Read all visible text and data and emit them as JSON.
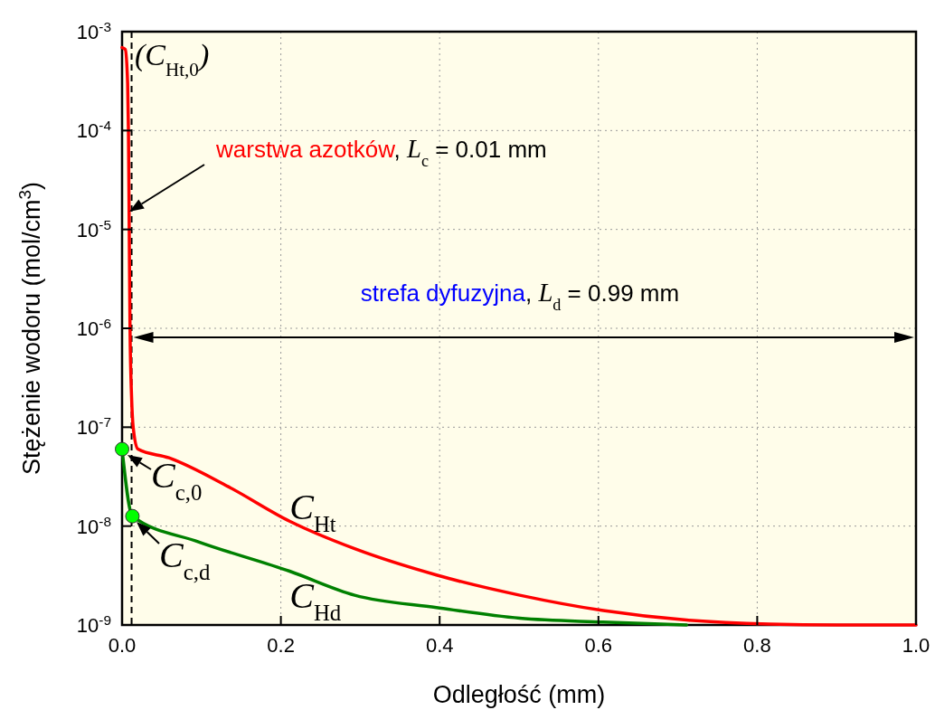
{
  "chart_data": {
    "type": "line",
    "xlabel": "Odległość  (mm)",
    "ylabel": "Stężenie wodoru  (mol/cm$^{3}$)",
    "log": "y",
    "xlim": [
      0,
      1
    ],
    "xticks": [
      {
        "value": 0,
        "label": "0.0"
      },
      {
        "value": 0.2,
        "label": "0.2"
      },
      {
        "value": 0.4,
        "label": "0.4"
      },
      {
        "value": 0.6,
        "label": "0.6"
      },
      {
        "value": 0.8,
        "label": "0.8"
      },
      {
        "value": 1,
        "label": "1.0"
      }
    ],
    "ylim": [
      1e-09,
      0.001
    ],
    "yticks": [
      {
        "value": 1e-09,
        "label": "10$^{-9}$"
      },
      {
        "value": 1e-08,
        "label": "10$^{-8}$"
      },
      {
        "value": 1e-07,
        "label": "10$^{-7}$"
      },
      {
        "value": 1e-06,
        "label": "10$^{-6}$"
      },
      {
        "value": 1e-05,
        "label": "10$^{-5}$"
      },
      {
        "value": 0.0001,
        "label": "10$^{-4}$"
      },
      {
        "value": 0.001,
        "label": "10$^{-3}$"
      }
    ],
    "grid": true,
    "series": [
      {
        "name": "C$_{Ht}$",
        "color": "#ff0000",
        "x": [
          0,
          0.004,
          0.007,
          0.008,
          0.009,
          0.01,
          0.012,
          0.014,
          0.02,
          0.059,
          0.134,
          0.211,
          0.293,
          0.396,
          0.501,
          0.606,
          0.711,
          0.815,
          0.9,
          1.0
        ],
        "values": [
          0.00069,
          0.00066,
          0.0003,
          0.0001,
          1e-05,
          1e-06,
          2e-07,
          1e-07,
          6e-08,
          4.9e-08,
          2.5e-08,
          1.12e-08,
          5.9e-09,
          3.2e-09,
          2e-09,
          1.4e-09,
          1.12e-09,
          1.02e-09,
          1e-09,
          1e-09
        ]
      },
      {
        "name": "C$_{Hd}$",
        "color": "#008000",
        "x": [
          0,
          0.013,
          0.097,
          0.211,
          0.293,
          0.396,
          0.501,
          0.606,
          0.711
        ],
        "values": [
          6e-08,
          1.26e-08,
          6.9e-09,
          3.5e-09,
          2e-09,
          1.5e-09,
          1.17e-09,
          1.07e-09,
          1e-09
        ]
      },
      {
        "type": "scatter",
        "color": "#00ff00",
        "marker": "circle",
        "x": [
          0,
          0.013
        ],
        "values": [
          6e-08,
          1.26e-08
        ]
      }
    ],
    "ref_lines": [
      {
        "axis": "x",
        "value": 0.012,
        "line_style": "dashed",
        "color": "#000000"
      }
    ],
    "annotations": [
      "(C$_{Ht,0}$)",
      "warstwa azotków, L$_{c}$ = 0.01 mm",
      "strefa dyfuzyjna, L$_{d}$ = 0.99 mm",
      "C$_{c,0}$",
      "C$_{c,d}$"
    ]
  }
}
